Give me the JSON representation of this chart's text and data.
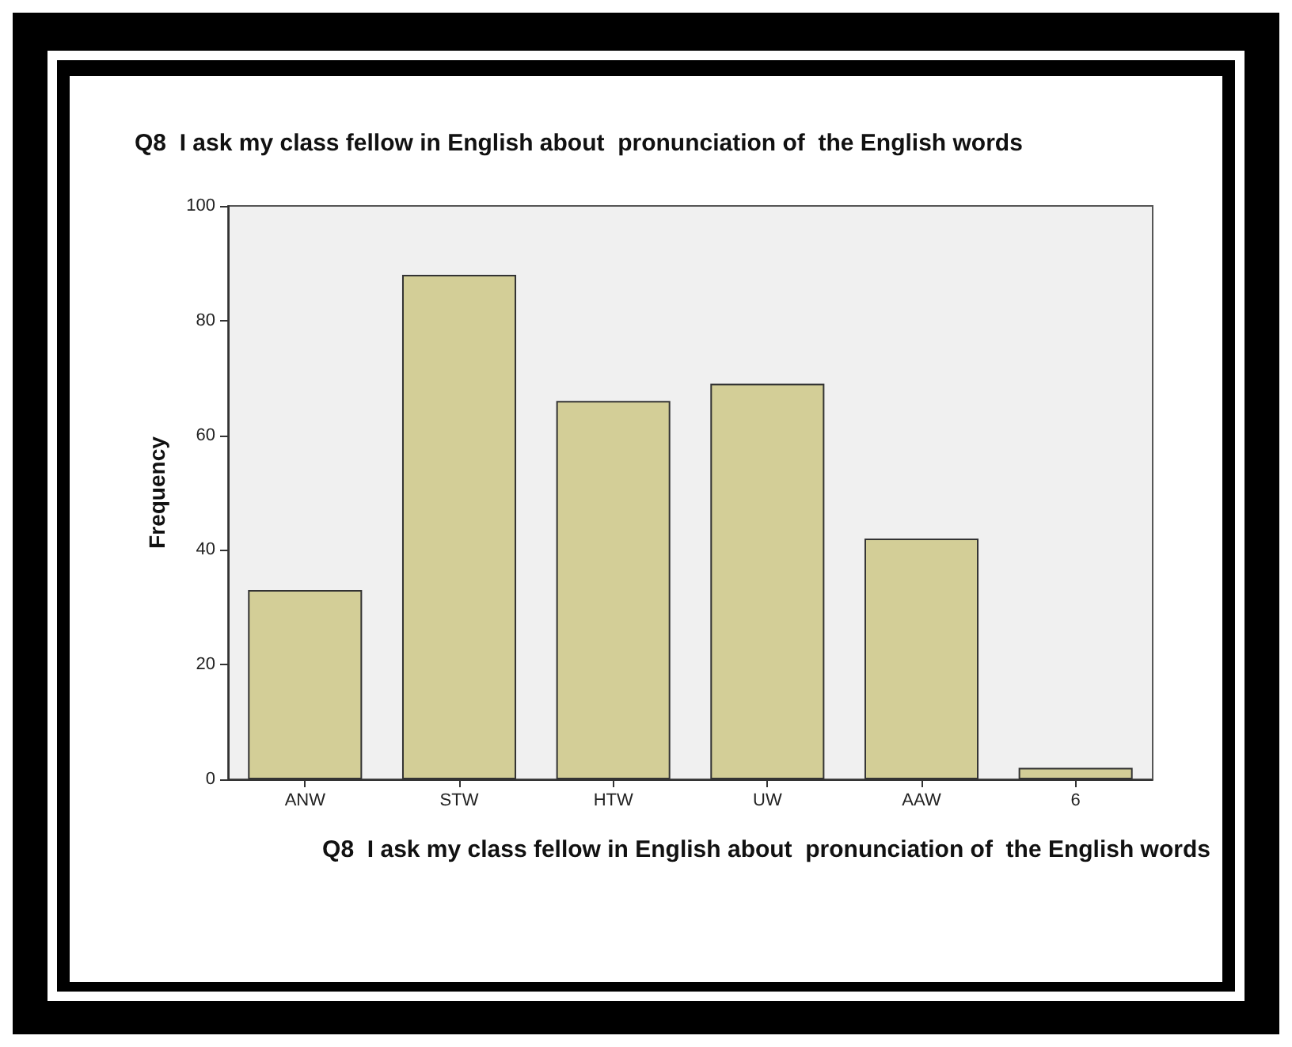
{
  "chart_data": {
    "type": "bar",
    "title": "Q8  I ask my class fellow in English about  pronunciation of  the English words",
    "xlabel": "Q8  I ask my class fellow in English about  pronunciation of  the English words",
    "ylabel": "Frequency",
    "categories": [
      "ANW",
      "STW",
      "HTW",
      "UW",
      "AAW",
      "6"
    ],
    "values": [
      33,
      88,
      66,
      69,
      42,
      2
    ],
    "color": "#d3ce97",
    "ylim": [
      0,
      100
    ],
    "yticks": [
      0,
      20,
      40,
      60,
      80,
      100
    ]
  }
}
